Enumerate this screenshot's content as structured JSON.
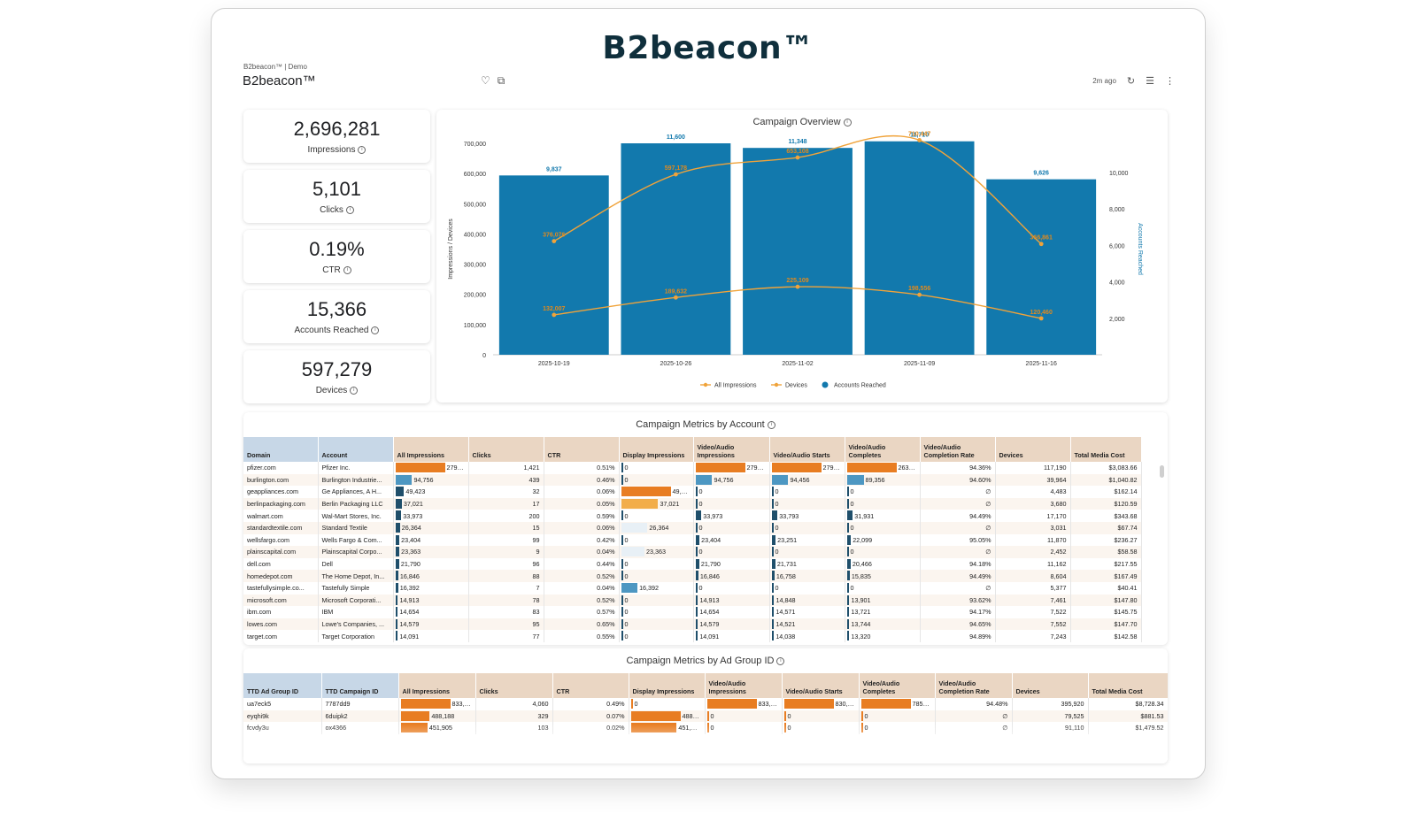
{
  "brand_title": "B2beacon™",
  "header": {
    "breadcrumb": "B2beacon™ | Demo",
    "title": "B2beacon™",
    "updated": "2m ago"
  },
  "kpis": [
    {
      "value": "2,696,281",
      "label": "Impressions"
    },
    {
      "value": "5,101",
      "label": "Clicks"
    },
    {
      "value": "0.19%",
      "label": "CTR"
    },
    {
      "value": "15,366",
      "label": "Accounts Reached"
    },
    {
      "value": "597,279",
      "label": "Devices"
    }
  ],
  "chart_data": {
    "type": "bar",
    "title": "Campaign Overview",
    "categories": [
      "2025-10-19",
      "2025-10-26",
      "2025-11-02",
      "2025-11-09",
      "2025-11-16"
    ],
    "series": [
      {
        "name": "Accounts Reached",
        "kind": "bar",
        "axis": "right",
        "values": [
          9837,
          11600,
          11348,
          11710,
          9626
        ],
        "labels": [
          "9,837",
          "11,600",
          "11,348",
          "11,710",
          "9,626"
        ]
      },
      {
        "name": "All Impressions",
        "kind": "line",
        "axis": "left",
        "values": [
          376076,
          597178,
          653108,
          710447,
          366861
        ],
        "labels": [
          "376,076",
          "597,178",
          "653,108",
          "710,447",
          "366,861"
        ]
      },
      {
        "name": "Devices",
        "kind": "line",
        "axis": "left",
        "values": [
          132007,
          189632,
          225109,
          198556,
          120460
        ],
        "labels": [
          "132,007",
          "189,632",
          "225,109",
          "198,556",
          "120,460"
        ]
      }
    ],
    "ylabel": "Impressions / Devices",
    "y2label": "Accounts Reached",
    "ylim": [
      0,
      700000
    ],
    "y2lim": [
      0,
      11600
    ],
    "yticks": [
      "0",
      "100,000",
      "200,000",
      "300,000",
      "400,000",
      "500,000",
      "600,000",
      "700,000"
    ],
    "y2ticks": [
      "2,000",
      "4,000",
      "6,000",
      "8,000",
      "10,000"
    ],
    "legend": [
      "All Impressions",
      "Devices",
      "Accounts Reached"
    ],
    "colors": {
      "bar": "#1279ad",
      "line": "#f0a33a",
      "label_bar": "#1279ad",
      "label_line": "#e08a1e"
    }
  },
  "account_table": {
    "title": "Campaign Metrics by Account",
    "columns": [
      "Domain",
      "Account",
      "All Impressions",
      "Clicks",
      "CTR",
      "Display Impressions",
      "Video/Audio Impressions",
      "Video/Audio Starts",
      "Video/Audio Completes",
      "Video/Audio Completion Rate",
      "Devices",
      "Total Media Cost"
    ],
    "rows": [
      [
        "pfizer.com",
        "Pfizer Inc.",
        "279,751",
        "1,421",
        "0.51%",
        "0",
        "279,751",
        "279,056",
        "263,327",
        "94.36%",
        "117,190",
        "$3,083.66"
      ],
      [
        "burlington.com",
        "Burlington Industrie...",
        "94,756",
        "439",
        "0.46%",
        "0",
        "94,756",
        "94,456",
        "89,356",
        "94.60%",
        "39,964",
        "$1,040.82"
      ],
      [
        "geappliances.com",
        "Ge Appliances, A H...",
        "49,423",
        "32",
        "0.06%",
        "49,423",
        "0",
        "0",
        "0",
        "∅",
        "4,483",
        "$162.14"
      ],
      [
        "berlinpackaging.com",
        "Berlin Packaging LLC",
        "37,021",
        "17",
        "0.05%",
        "37,021",
        "0",
        "0",
        "0",
        "∅",
        "3,680",
        "$120.59"
      ],
      [
        "walmart.com",
        "Wal-Mart Stores, Inc.",
        "33,973",
        "200",
        "0.59%",
        "0",
        "33,973",
        "33,793",
        "31,931",
        "94.49%",
        "17,170",
        "$343.68"
      ],
      [
        "standardtextile.com",
        "Standard Textile",
        "26,364",
        "15",
        "0.06%",
        "26,364",
        "0",
        "0",
        "0",
        "∅",
        "3,031",
        "$67.74"
      ],
      [
        "wellsfargo.com",
        "Wells Fargo & Com...",
        "23,404",
        "99",
        "0.42%",
        "0",
        "23,404",
        "23,251",
        "22,099",
        "95.05%",
        "11,870",
        "$236.27"
      ],
      [
        "plainscapital.com",
        "Plainscapital Corpo...",
        "23,363",
        "9",
        "0.04%",
        "23,363",
        "0",
        "0",
        "0",
        "∅",
        "2,452",
        "$58.58"
      ],
      [
        "dell.com",
        "Dell",
        "21,790",
        "96",
        "0.44%",
        "0",
        "21,790",
        "21,731",
        "20,466",
        "94.18%",
        "11,162",
        "$217.55"
      ],
      [
        "homedepot.com",
        "The Home Depot, In...",
        "16,846",
        "88",
        "0.52%",
        "0",
        "16,846",
        "16,758",
        "15,835",
        "94.49%",
        "8,604",
        "$167.49"
      ],
      [
        "tastefullysimple.co...",
        "Tastefully Simple",
        "16,392",
        "7",
        "0.04%",
        "16,392",
        "0",
        "0",
        "0",
        "∅",
        "5,377",
        "$40.41"
      ],
      [
        "microsoft.com",
        "Microsoft Corporati...",
        "14,913",
        "78",
        "0.52%",
        "0",
        "14,913",
        "14,848",
        "13,901",
        "93.62%",
        "7,461",
        "$147.80"
      ],
      [
        "ibm.com",
        "IBM",
        "14,654",
        "83",
        "0.57%",
        "0",
        "14,654",
        "14,571",
        "13,721",
        "94.17%",
        "7,522",
        "$145.75"
      ],
      [
        "lowes.com",
        "Lowe's Companies, ...",
        "14,579",
        "95",
        "0.65%",
        "0",
        "14,579",
        "14,521",
        "13,744",
        "94.65%",
        "7,552",
        "$147.70"
      ],
      [
        "target.com",
        "Target Corporation",
        "14,091",
        "77",
        "0.55%",
        "0",
        "14,091",
        "14,038",
        "13,320",
        "94.89%",
        "7,243",
        "$142.58"
      ]
    ]
  },
  "adgroup_table": {
    "title": "Campaign Metrics by Ad Group ID",
    "columns": [
      "TTD Ad Group ID",
      "TTD Campaign ID",
      "All Impressions",
      "Clicks",
      "CTR",
      "Display Impressions",
      "Video/Audio Impressions",
      "Video/Audio Starts",
      "Video/Audio Completes",
      "Video/Audio Completion Rate",
      "Devices",
      "Total Media Cost"
    ],
    "rows": [
      [
        "ua7eck5",
        "7787dd9",
        "833,079",
        "4,060",
        "0.49%",
        "0",
        "833,079",
        "830,908",
        "785,040",
        "94.48%",
        "395,920",
        "$8,728.34"
      ],
      [
        "eyqhi9k",
        "6duipk2",
        "488,188",
        "329",
        "0.07%",
        "488,188",
        "0",
        "0",
        "0",
        "∅",
        "79,525",
        "$881.53"
      ],
      [
        "fcvdy3u",
        "ox4366",
        "451,905",
        "103",
        "0.02%",
        "451,905",
        "0",
        "0",
        "0",
        "∅",
        "91,110",
        "$1,479.52"
      ]
    ]
  }
}
